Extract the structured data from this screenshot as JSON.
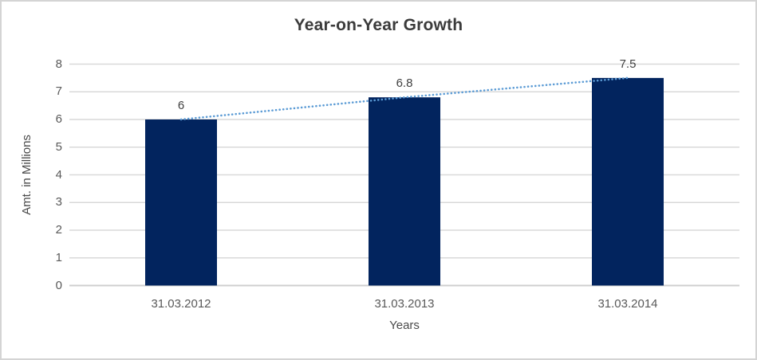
{
  "chart_data": {
    "type": "bar",
    "title": "Year-on-Year Growth",
    "categories": [
      "31.03.2012",
      "31.03.2013",
      "31.03.2014"
    ],
    "values": [
      6,
      6.8,
      7.5
    ],
    "data_labels": [
      "6",
      "6.8",
      "7.5"
    ],
    "xlabel": "Years",
    "ylabel": "Amt. in Millions",
    "ylim": [
      0,
      8
    ],
    "yticks": [
      0,
      1,
      2,
      3,
      4,
      5,
      6,
      7,
      8
    ],
    "grid": "horizontal",
    "legend": "none",
    "trendline": {
      "style": "dotted",
      "values": [
        6,
        6.8,
        7.5
      ],
      "color": "#5b9bd5"
    },
    "colors": {
      "bar": "#02245e",
      "gridline": "#d9d9d9",
      "axis_line": "#cfcfcf",
      "title_text": "#3b3b3b",
      "axis_text": "#595959",
      "label_text": "#404040"
    }
  }
}
